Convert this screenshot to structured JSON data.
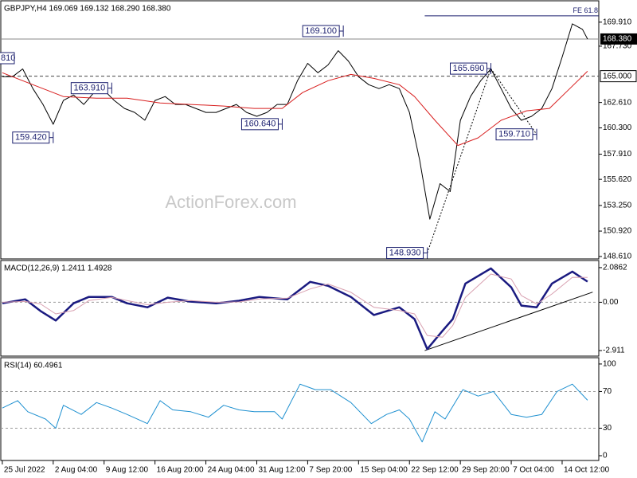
{
  "chart_data": [
    {
      "type": "line",
      "title": "GBPJPY,H4 169.069 169.132 168.290 168.380",
      "watermark": "ActionForex.com",
      "x": [
        0,
        4,
        8,
        12,
        16,
        20,
        24,
        28,
        32,
        36,
        40,
        44,
        48,
        52,
        56,
        60,
        64,
        68,
        72,
        76,
        80,
        84,
        88,
        92,
        96,
        100,
        104,
        108,
        112,
        116,
        120,
        124,
        128,
        132,
        136,
        140,
        144,
        148,
        152,
        156,
        160,
        164,
        168,
        172,
        176,
        180,
        184,
        188,
        192,
        196,
        200,
        204,
        208,
        212,
        216,
        220,
        224,
        228,
        230
      ],
      "series": [
        {
          "color": "#000000",
          "values": [
            164.95,
            164.95,
            165.66,
            163.87,
            162.43,
            160.63,
            162.79,
            163.29,
            162.43,
            163.51,
            163.72,
            162.79,
            162.07,
            161.71,
            161.0,
            162.79,
            163.15,
            162.43,
            162.43,
            162.07,
            161.71,
            161.71,
            162.07,
            162.43,
            161.71,
            161.35,
            161.71,
            162.43,
            162.43,
            164.59,
            166.17,
            165.31,
            166.02,
            167.32,
            166.38,
            164.95,
            164.23,
            163.87,
            164.23,
            163.87,
            161.71,
            157.39,
            152.0,
            155.23,
            154.51,
            160.99,
            163.15,
            164.59,
            165.66,
            163.87,
            162.07,
            160.99,
            161.35,
            162.07,
            163.87,
            166.74,
            169.76,
            169.26,
            168.38
          ]
        },
        {
          "color": "#d81e1e",
          "x": [
            0,
            12,
            24,
            37,
            49,
            62,
            74,
            87,
            99,
            110,
            118,
            128,
            137,
            146,
            156,
            162,
            170,
            179,
            187,
            196,
            206,
            215,
            223,
            230
          ],
          "values": [
            165.31,
            164.23,
            163.15,
            163.0,
            163.0,
            162.57,
            162.43,
            162.29,
            162.07,
            162.07,
            163.51,
            164.59,
            165.16,
            164.8,
            164.23,
            163.15,
            160.99,
            158.7,
            159.4,
            160.99,
            161.85,
            162.07,
            163.87,
            165.45
          ]
        }
      ],
      "xlim": [
        -0.6,
        234.4
      ],
      "ylim": [
        148.39,
        171.78
      ],
      "yticks": [
        {
          "value": 169.91,
          "label": "169.910"
        },
        {
          "value": 167.73,
          "label": "167.730"
        },
        {
          "value": 162.61,
          "label": "162.610"
        },
        {
          "value": 160.3,
          "label": "160.300"
        },
        {
          "value": 157.91,
          "label": "157.910"
        },
        {
          "value": 155.62,
          "label": "155.620"
        },
        {
          "value": 153.25,
          "label": "153.250"
        },
        {
          "value": 150.92,
          "label": "150.920"
        },
        {
          "value": 148.61,
          "label": "148.610"
        }
      ],
      "level": {
        "value": 165,
        "label": "165.000"
      },
      "last_price": {
        "value": 168.38,
        "label": "168.380"
      },
      "fe_line": {
        "label": "FE 61.8",
        "value": 170.49,
        "x": [
          166,
          234.4
        ]
      },
      "clipped_label": "810",
      "annotations": [
        {
          "x": 134,
          "value": 169.1,
          "label": "169.100"
        },
        {
          "x": 192,
          "value": 165.69,
          "label": "165.690"
        },
        {
          "x": 43,
          "value": 163.91,
          "label": "163.910"
        },
        {
          "x": 110,
          "value": 160.64,
          "label": "160.640"
        },
        {
          "x": 20,
          "value": 159.42,
          "label": "159.420"
        },
        {
          "x": 210,
          "value": 159.71,
          "label": "159.710"
        },
        {
          "x": 167,
          "value": 148.93,
          "label": "148.930"
        }
      ]
    },
    {
      "type": "line",
      "title": "MACD(12,26,9) 1.2411 1.4928",
      "x": [
        0,
        9,
        15,
        21,
        28,
        34,
        43,
        49,
        57,
        65,
        74,
        84,
        93,
        101,
        112,
        121,
        128,
        137,
        146,
        156,
        162,
        167,
        173,
        177,
        182,
        192,
        200,
        204,
        210,
        216,
        224,
        230
      ],
      "series": [
        {
          "color": "#1a1a80",
          "width": 2.5,
          "values": [
            -0.06,
            0.18,
            -0.53,
            -1.1,
            -0.06,
            0.32,
            0.32,
            -0.06,
            -0.3,
            0.28,
            0.04,
            -0.06,
            0.09,
            0.32,
            0.18,
            1.23,
            0.99,
            0.32,
            -0.77,
            -0.3,
            -1.01,
            -2.82,
            -1.72,
            -1.01,
            1.13,
            2.04,
            0.9,
            -0.2,
            -0.3,
            1.13,
            1.85,
            1.2411
          ]
        },
        {
          "color": "#d8a0b0",
          "width": 1,
          "values": [
            0.0,
            0.05,
            -0.1,
            -0.7,
            -0.5,
            0.1,
            0.3,
            0.1,
            -0.15,
            0.0,
            0.1,
            0.0,
            0.02,
            0.2,
            0.25,
            0.8,
            1.1,
            0.6,
            -0.3,
            -0.5,
            -0.7,
            -2.0,
            -2.1,
            -1.4,
            0.3,
            1.7,
            1.4,
            0.4,
            -0.1,
            0.5,
            1.5,
            1.4928
          ]
        }
      ],
      "trendline": {
        "x": [
          166,
          232
        ],
        "values": [
          -2.91,
          0.61
        ]
      },
      "levels": [
        0
      ],
      "xlim": [
        -0.6,
        234.4
      ],
      "ylim": [
        -3.244,
        2.467
      ],
      "yticks": [
        2.0862,
        {
          "value": 0,
          "label": "0.00"
        },
        -2.911
      ]
    },
    {
      "type": "line",
      "title": "RSI(14) 60.4961",
      "x": [
        0,
        6,
        10,
        17,
        21,
        24,
        31,
        37,
        43,
        49,
        57,
        62,
        67,
        74,
        81,
        87,
        93,
        99,
        107,
        110,
        117,
        123,
        129,
        137,
        145,
        151,
        156,
        160,
        165,
        170,
        174,
        181,
        187,
        193,
        200,
        206,
        212,
        218,
        224,
        230
      ],
      "series": [
        {
          "color": "#1e90d0",
          "width": 1,
          "values": [
            52,
            60,
            48,
            40,
            30,
            55,
            45,
            58,
            52,
            45,
            35,
            60,
            50,
            48,
            42,
            55,
            50,
            48,
            48,
            40,
            78,
            72,
            72,
            58,
            35,
            45,
            50,
            40,
            15,
            48,
            40,
            72,
            65,
            70,
            45,
            42,
            45,
            70,
            78,
            60.4961
          ]
        }
      ],
      "levels": [
        70,
        30
      ],
      "xlim": [
        -0.6,
        234.4
      ],
      "ylim": [
        -5.2,
        106
      ],
      "yticks": [
        100,
        70,
        30,
        0
      ],
      "xticks": [
        {
          "value": 0,
          "label": "25 Jul 2022"
        },
        {
          "value": 20,
          "label": "2 Aug 04:00"
        },
        {
          "value": 40,
          "label": "9 Aug 12:00"
        },
        {
          "value": 60,
          "label": "16 Aug 20:00"
        },
        {
          "value": 80,
          "label": "24 Aug 04:00"
        },
        {
          "value": 100,
          "label": "31 Aug 12:00"
        },
        {
          "value": 120,
          "label": "7 Sep 20:00"
        },
        {
          "value": 140,
          "label": "15 Sep 04:00"
        },
        {
          "value": 160,
          "label": "22 Sep 12:00"
        },
        {
          "value": 180,
          "label": "29 Sep 20:00"
        },
        {
          "value": 200,
          "label": "7 Oct 04:00"
        },
        {
          "value": 220,
          "label": "14 Oct 12:00"
        }
      ]
    }
  ]
}
